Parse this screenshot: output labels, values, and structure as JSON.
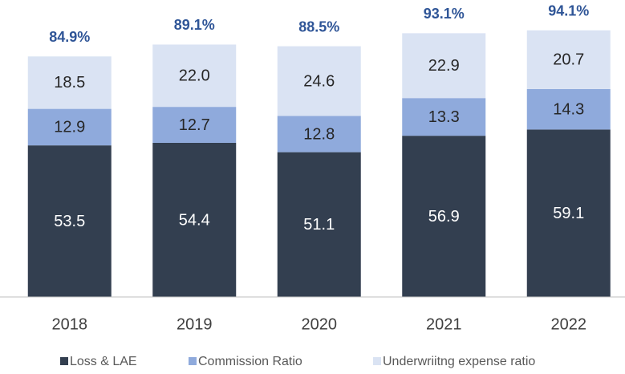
{
  "chart_data": {
    "type": "stacked_bar",
    "categories": [
      "2018",
      "2019",
      "2020",
      "2021",
      "2022"
    ],
    "series": [
      {
        "name": "Loss & LAE",
        "color": "#333f50",
        "values": [
          53.5,
          54.4,
          51.1,
          56.9,
          59.1
        ]
      },
      {
        "name": "Commission Ratio",
        "color": "#8faadc",
        "values": [
          12.9,
          12.7,
          12.8,
          13.3,
          14.3
        ]
      },
      {
        "name": "Underwriitng expense ratio",
        "color": "#dae3f3",
        "values": [
          18.5,
          22.0,
          24.6,
          22.9,
          20.7
        ]
      }
    ],
    "totals": [
      84.9,
      89.1,
      88.5,
      93.1,
      94.1
    ],
    "total_labels": [
      "84.9%",
      "89.1%",
      "88.5%",
      "93.1%",
      "94.1%"
    ],
    "value_labels": [
      [
        "53.5",
        "54.4",
        "51.1",
        "56.9",
        "59.1"
      ],
      [
        "12.9",
        "12.7",
        "12.8",
        "13.3",
        "14.3"
      ],
      [
        "18.5",
        "22.0",
        "24.6",
        "22.9",
        "20.7"
      ]
    ],
    "ylim": [
      0,
      100
    ],
    "legend": "bottom"
  }
}
